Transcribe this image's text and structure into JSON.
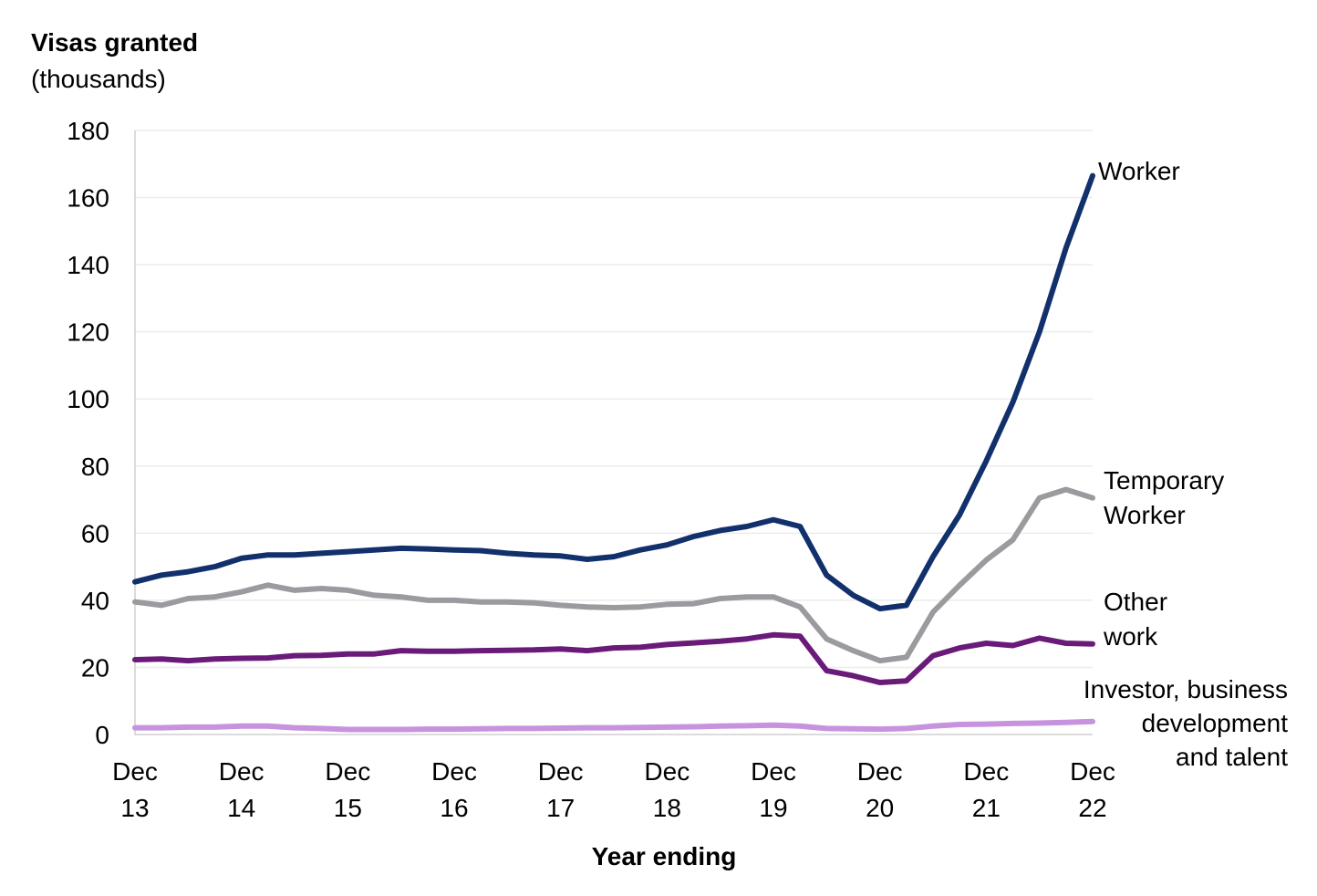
{
  "chart_data": {
    "type": "line",
    "title": "",
    "ylabel": "Visas granted",
    "ylabel_sub": "(thousands)",
    "xlabel": "Year ending",
    "ylim": [
      0,
      180
    ],
    "yticks": [
      0,
      20,
      40,
      60,
      80,
      100,
      120,
      140,
      160,
      180
    ],
    "grid": true,
    "x_tick_labels": [
      {
        "month": "Dec",
        "year": "13"
      },
      {
        "month": "Dec",
        "year": "14"
      },
      {
        "month": "Dec",
        "year": "15"
      },
      {
        "month": "Dec",
        "year": "16"
      },
      {
        "month": "Dec",
        "year": "17"
      },
      {
        "month": "Dec",
        "year": "18"
      },
      {
        "month": "Dec",
        "year": "19"
      },
      {
        "month": "Dec",
        "year": "20"
      },
      {
        "month": "Dec",
        "year": "21"
      },
      {
        "month": "Dec",
        "year": "22"
      }
    ],
    "x": [
      "Dec 13",
      "Mar 14",
      "Jun 14",
      "Sep 14",
      "Dec 14",
      "Mar 15",
      "Jun 15",
      "Sep 15",
      "Dec 15",
      "Mar 16",
      "Jun 16",
      "Sep 16",
      "Dec 16",
      "Mar 17",
      "Jun 17",
      "Sep 17",
      "Dec 17",
      "Mar 18",
      "Jun 18",
      "Sep 18",
      "Dec 18",
      "Mar 19",
      "Jun 19",
      "Sep 19",
      "Dec 19",
      "Mar 20",
      "Jun 20",
      "Sep 20",
      "Dec 20",
      "Mar 21",
      "Jun 21",
      "Sep 21",
      "Dec 21",
      "Mar 22",
      "Jun 22",
      "Sep 22",
      "Dec 22"
    ],
    "series": [
      {
        "name": "Worker",
        "label_lines": [
          "Worker"
        ],
        "color": "#12306b",
        "values": [
          45.5,
          47.5,
          48.5,
          50,
          52.5,
          53.5,
          53.5,
          54,
          54.5,
          55,
          55.5,
          55.3,
          55,
          54.8,
          54,
          53.5,
          53.2,
          52.2,
          53,
          55,
          56.5,
          59,
          60.8,
          62,
          64,
          62,
          47.5,
          41.5,
          37.5,
          38.5,
          53,
          65.5,
          81.5,
          99,
          120,
          145,
          166.5
        ]
      },
      {
        "name": "Temporary Worker",
        "label_lines": [
          "Temporary",
          "Worker"
        ],
        "color": "#9b9b9f",
        "values": [
          39.5,
          38.5,
          40.5,
          41,
          42.5,
          44.5,
          43,
          43.5,
          43,
          41.5,
          41,
          40,
          40,
          39.5,
          39.5,
          39.2,
          38.5,
          38,
          37.8,
          38,
          38.8,
          39,
          40.5,
          41,
          41,
          38,
          28.5,
          25,
          22,
          23,
          36.5,
          44.5,
          52,
          58,
          70.5,
          73,
          70.5
        ]
      },
      {
        "name": "Other work",
        "label_lines": [
          "Other",
          "work"
        ],
        "color": "#6a1a78",
        "values": [
          22.3,
          22.5,
          22,
          22.5,
          22.7,
          22.8,
          23.5,
          23.6,
          24,
          24,
          25,
          24.8,
          24.8,
          25,
          25.1,
          25.2,
          25.5,
          25,
          25.8,
          26,
          26.8,
          27.3,
          27.8,
          28.5,
          29.7,
          29.3,
          19,
          17.5,
          15.5,
          16,
          23.5,
          25.8,
          27.2,
          26.5,
          28.7,
          27.2,
          27
        ]
      },
      {
        "name": "Investor, business development and talent",
        "label_lines": [
          "Investor, business",
          "development",
          "and talent"
        ],
        "color": "#c792de",
        "values": [
          2,
          2,
          2.2,
          2.2,
          2.5,
          2.5,
          2,
          1.8,
          1.5,
          1.5,
          1.5,
          1.6,
          1.6,
          1.7,
          1.8,
          1.8,
          1.9,
          2,
          2,
          2.1,
          2.2,
          2.3,
          2.5,
          2.6,
          2.8,
          2.5,
          1.8,
          1.7,
          1.6,
          1.8,
          2.5,
          3,
          3.1,
          3.3,
          3.4,
          3.6,
          3.9
        ]
      }
    ]
  }
}
